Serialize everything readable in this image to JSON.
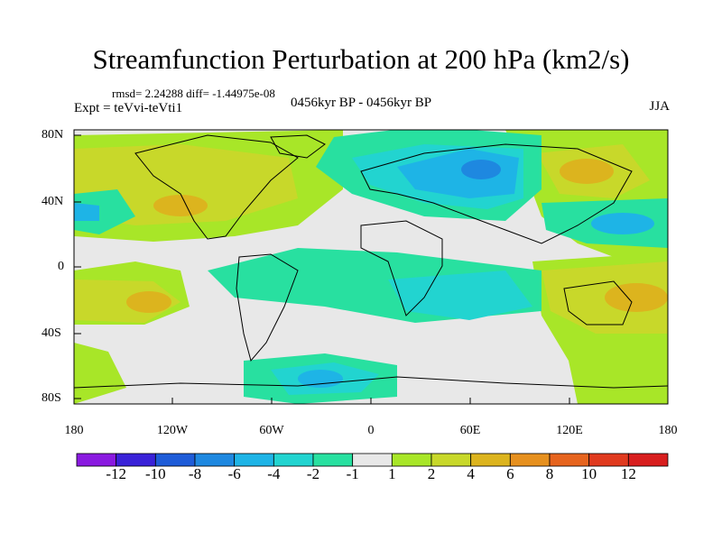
{
  "title": "Streamfunction Perturbation at 200 hPa (km2/s)",
  "stats": "rmsd= 2.24288  diff= -1.44975e-08",
  "experiment": "Expt = teVvi-teVti1",
  "period": "0456kyr BP - 0456kyr BP",
  "season": "JJA",
  "y_ticks": [
    "80N",
    "40N",
    "0",
    "40S",
    "80S"
  ],
  "x_ticks": [
    "180",
    "120W",
    "60W",
    "0",
    "60E",
    "120E",
    "180"
  ],
  "colorbar": {
    "labels": [
      "-12",
      "-10",
      "-8",
      "-6",
      "-4",
      "-2",
      "-1",
      "1",
      "2",
      "4",
      "6",
      "8",
      "10",
      "12"
    ],
    "colors": [
      "#8a1ae0",
      "#3a22d8",
      "#1e5cd8",
      "#1e88e0",
      "#1eb4e6",
      "#22d4d0",
      "#28e0a0",
      "#e8e8e8",
      "#a8e628",
      "#c8d82a",
      "#dcb41e",
      "#e6901e",
      "#e6641e",
      "#e03a1e",
      "#d81e1e"
    ]
  },
  "colors": {
    "land_outline": "#000000",
    "neutral": "#e8e8e8",
    "green": "#a8e628",
    "olive": "#c8d82a",
    "orange": "#dcb41e",
    "teal": "#28e0a0",
    "cyan": "#22d4d0",
    "lightblue": "#1eb4e6",
    "blue": "#1e88e0"
  }
}
